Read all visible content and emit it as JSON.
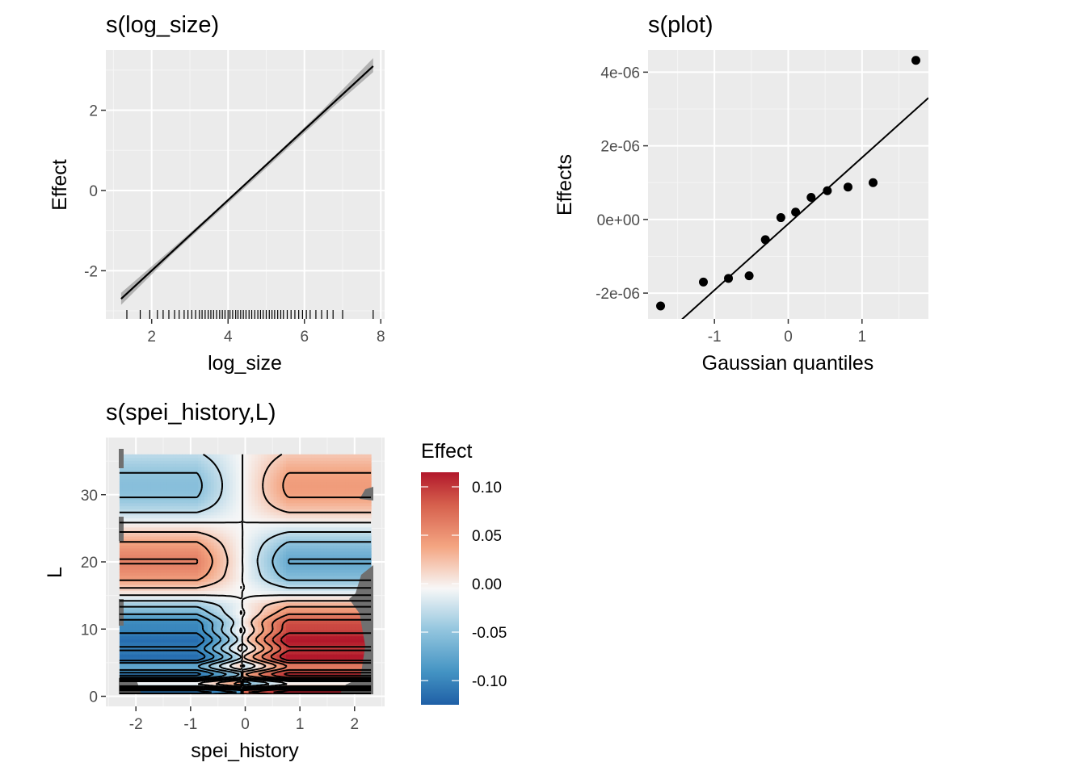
{
  "chart_data": [
    {
      "type": "line",
      "title": "s(log_size)",
      "xlabel": "log_size",
      "ylabel": "Effect",
      "xlim": [
        0.8,
        8.1
      ],
      "ylim": [
        -3.2,
        3.5
      ],
      "xticks": [
        2,
        4,
        6,
        8
      ],
      "xtick_labels": [
        "2",
        "4",
        "6",
        "8"
      ],
      "yticks": [
        -2,
        0,
        2
      ],
      "ytick_labels": [
        "-2",
        "0",
        "2"
      ],
      "grid": true,
      "series": [
        {
          "x": [
            1.2,
            7.8
          ],
          "y": [
            -2.7,
            3.1
          ]
        }
      ],
      "ci_band": {
        "x": [
          1.2,
          2.5,
          4.5,
          6.5,
          7.8
        ],
        "lower": [
          -2.85,
          -1.62,
          0.12,
          1.87,
          2.95
        ],
        "upper": [
          -2.55,
          -1.48,
          0.2,
          2.03,
          3.3
        ]
      },
      "rug": [
        1.35,
        1.7,
        1.95,
        2.15,
        2.3,
        2.45,
        2.6,
        2.72,
        2.85,
        2.95,
        3.05,
        3.15,
        3.25,
        3.32,
        3.4,
        3.48,
        3.55,
        3.62,
        3.7,
        3.78,
        3.85,
        3.92,
        4.0,
        4.05,
        4.12,
        4.2,
        4.26,
        4.33,
        4.4,
        4.47,
        4.55,
        4.62,
        4.7,
        4.78,
        4.85,
        4.92,
        5.0,
        5.08,
        5.15,
        5.22,
        5.3,
        5.38,
        5.45,
        5.55,
        5.65,
        5.75,
        5.85,
        5.95,
        6.05,
        6.15,
        6.3,
        6.45,
        6.6,
        6.75,
        7.0,
        7.8
      ]
    },
    {
      "type": "scatter",
      "title": "s(plot)",
      "xlabel": "Gaussian quantiles",
      "ylabel": "Effects",
      "xlim": [
        -1.9,
        1.9
      ],
      "ylim": [
        -2.7e-06,
        4.6e-06
      ],
      "xticks": [
        -1,
        0,
        1
      ],
      "xtick_labels": [
        "-1",
        "0",
        "1"
      ],
      "yticks": [
        -2e-06,
        0,
        2e-06,
        4e-06
      ],
      "ytick_labels": [
        "-2e-06",
        "0e+00",
        "2e-06",
        "4e-06"
      ],
      "grid": true,
      "points": [
        {
          "x": -1.73,
          "y": -2.35e-06
        },
        {
          "x": -1.15,
          "y": -1.7e-06
        },
        {
          "x": -0.81,
          "y": -1.6e-06
        },
        {
          "x": -0.53,
          "y": -1.53e-06
        },
        {
          "x": -0.31,
          "y": -5.5e-07
        },
        {
          "x": -0.1,
          "y": 5e-08
        },
        {
          "x": 0.1,
          "y": 2e-07
        },
        {
          "x": 0.31,
          "y": 6e-07
        },
        {
          "x": 0.53,
          "y": 7.8e-07
        },
        {
          "x": 0.81,
          "y": 8.8e-07
        },
        {
          "x": 1.15,
          "y": 1e-06
        },
        {
          "x": 1.73,
          "y": 4.32e-06
        }
      ],
      "reference_line": {
        "slope": 1.8e-06,
        "intercept": -1.2e-07
      }
    },
    {
      "type": "heatmap",
      "title": "s(spei_history,L)",
      "xlabel": "spei_history",
      "ylabel": "L",
      "xlim": [
        -2.55,
        2.55
      ],
      "ylim": [
        -1.5,
        38.5
      ],
      "xticks": [
        -2,
        -1,
        0,
        1,
        2
      ],
      "xtick_labels": [
        "-2",
        "-1",
        "0",
        "1",
        "2"
      ],
      "yticks": [
        0,
        10,
        20,
        30
      ],
      "ytick_labels": [
        "0",
        "10",
        "20",
        "30"
      ],
      "z_range": [
        -0.125,
        0.115
      ],
      "colorscale": "RdBu (reversed)",
      "contours": true,
      "legend": {
        "title": "Effect",
        "position": "right",
        "ticks": [
          "0.10",
          "0.05",
          "0.00",
          "-0.05",
          "-0.10"
        ]
      }
    }
  ]
}
